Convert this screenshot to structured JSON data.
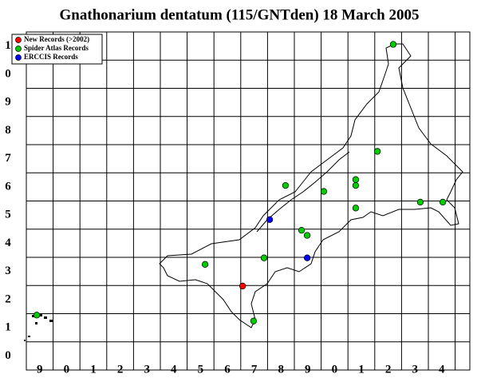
{
  "title": "Gnathonarium dentatum (115/GNTden) 18 March 2005",
  "legend": [
    {
      "label": "New Records (>2002)",
      "color": "#ff0000"
    },
    {
      "label": "Spider Atlas Records",
      "color": "#00cc00"
    },
    {
      "label": "ERCCIS Records",
      "color": "#0000ff"
    }
  ],
  "x_labels": [
    "9",
    "0",
    "1",
    "2",
    "3",
    "4",
    "5",
    "6",
    "7",
    "8",
    "9",
    "0",
    "1",
    "2",
    "3",
    "4"
  ],
  "y_labels": [
    "1",
    "0",
    "9",
    "8",
    "7",
    "6",
    "5",
    "4",
    "3",
    "2",
    "1",
    "0"
  ],
  "records": [
    {
      "legend": 1,
      "x": 13.69,
      "y": 11.56
    },
    {
      "legend": 1,
      "x": 13.1,
      "y": 7.76
    },
    {
      "legend": 1,
      "x": 12.29,
      "y": 6.76
    },
    {
      "legend": 1,
      "x": 12.29,
      "y": 6.55
    },
    {
      "legend": 1,
      "x": 11.1,
      "y": 6.34
    },
    {
      "legend": 1,
      "x": 9.67,
      "y": 6.55
    },
    {
      "legend": 1,
      "x": 12.29,
      "y": 5.75
    },
    {
      "legend": 1,
      "x": 14.7,
      "y": 5.96
    },
    {
      "legend": 1,
      "x": 15.54,
      "y": 5.96
    },
    {
      "legend": 2,
      "x": 9.08,
      "y": 5.34
    },
    {
      "legend": 1,
      "x": 10.27,
      "y": 4.96
    },
    {
      "legend": 1,
      "x": 10.48,
      "y": 4.78
    },
    {
      "legend": 1,
      "x": 8.87,
      "y": 3.98
    },
    {
      "legend": 2,
      "x": 10.48,
      "y": 3.98
    },
    {
      "legend": 1,
      "x": 6.67,
      "y": 3.75
    },
    {
      "legend": 0,
      "x": 8.07,
      "y": 2.98
    },
    {
      "legend": 1,
      "x": 8.48,
      "y": 1.74
    },
    {
      "legend": 1,
      "x": 0.39,
      "y": 1.95
    }
  ]
}
